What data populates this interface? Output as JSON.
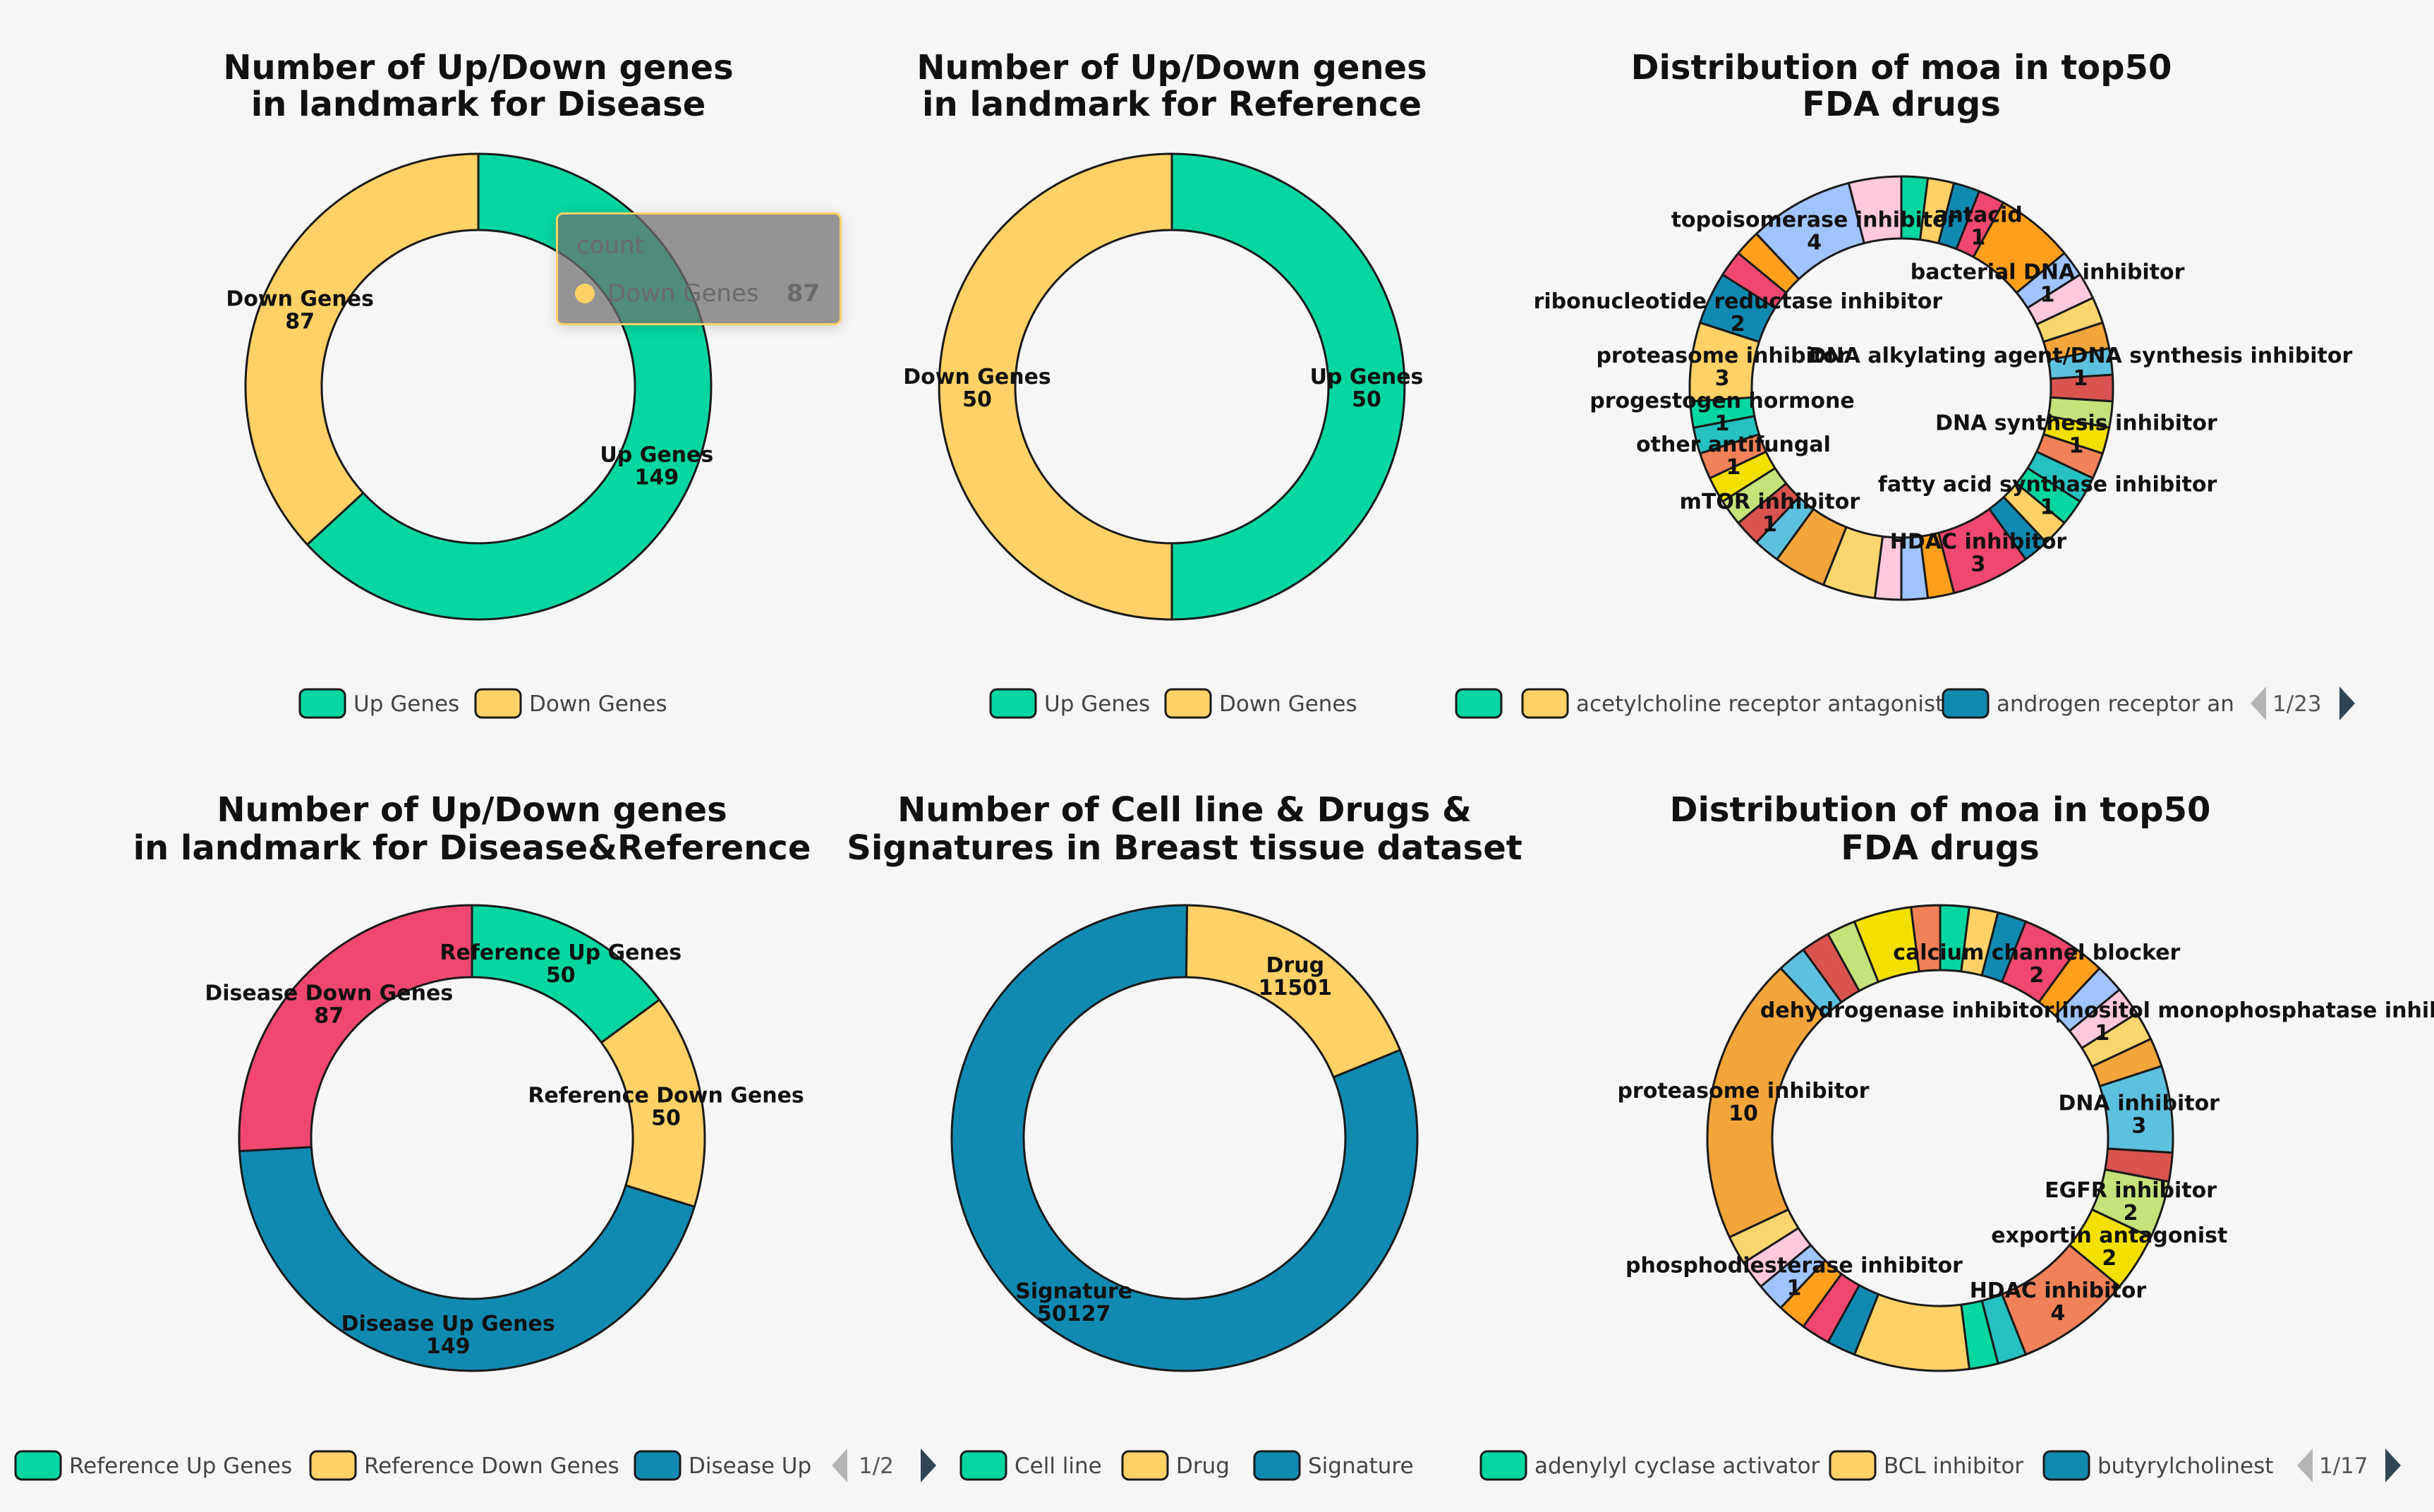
{
  "palette": [
    "#06d6a0",
    "#ffd166",
    "#118ab2",
    "#ef476f",
    "#ff9f1c",
    "#a0c4ff",
    "#ffc8dd",
    "#f9d66e",
    "#f2a53b",
    "#5ec0df",
    "#d9534f",
    "#c6e27a",
    "#f3e000",
    "#f08159",
    "#26c1c1"
  ],
  "chart_data": [
    {
      "type": "pie",
      "id": "disease",
      "title": [
        "Number of Up/Down genes",
        "in landmark for Disease"
      ],
      "slices": [
        {
          "name": "Up Genes",
          "value": 149,
          "label": true
        },
        {
          "name": "Down Genes",
          "value": 87,
          "label": true
        }
      ],
      "legend": {
        "items": [
          "Up Genes",
          "Down Genes"
        ]
      },
      "tooltip": {
        "title": "count",
        "name": "Down Genes",
        "value": "87"
      }
    },
    {
      "type": "pie",
      "id": "reference",
      "title": [
        "Number of Up/Down genes",
        "in landmark for Reference"
      ],
      "slices": [
        {
          "name": "Up Genes",
          "value": 50,
          "label": true
        },
        {
          "name": "Down Genes",
          "value": 50,
          "label": true
        }
      ],
      "legend": {
        "items": [
          "Up Genes",
          "Down Genes"
        ]
      }
    },
    {
      "type": "pie",
      "id": "moa1",
      "title": [
        "Distribution of moa in top50",
        "FDA drugs"
      ],
      "slices": [
        {
          "name": "",
          "value": 1
        },
        {
          "name": "acetylcholine receptor antagonist",
          "value": 1
        },
        {
          "name": "",
          "value": 1
        },
        {
          "name": "antacid",
          "value": 1,
          "label": true
        },
        {
          "name": "",
          "value": 3
        },
        {
          "name": "bacterial DNA inhibitor",
          "value": 1,
          "label": true
        },
        {
          "name": "",
          "value": 1
        },
        {
          "name": "",
          "value": 1
        },
        {
          "name": "",
          "value": 1
        },
        {
          "name": "DNA alkylating agent/DNA synthesis inhibitor",
          "value": 1,
          "label": true
        },
        {
          "name": "",
          "value": 1
        },
        {
          "name": "",
          "value": 1
        },
        {
          "name": "DNA synthesis inhibitor",
          "value": 1,
          "label": true
        },
        {
          "name": "",
          "value": 1
        },
        {
          "name": "",
          "value": 1
        },
        {
          "name": "fatty acid synthase inhibitor",
          "value": 1,
          "label": true
        },
        {
          "name": "",
          "value": 1
        },
        {
          "name": "",
          "value": 1
        },
        {
          "name": "HDAC inhibitor",
          "value": 3,
          "label": true
        },
        {
          "name": "",
          "value": 1
        },
        {
          "name": "",
          "value": 1
        },
        {
          "name": "",
          "value": 1
        },
        {
          "name": "",
          "value": 2
        },
        {
          "name": "",
          "value": 2
        },
        {
          "name": "",
          "value": 1
        },
        {
          "name": "mTOR inhibitor",
          "value": 1,
          "label": true
        },
        {
          "name": "",
          "value": 1
        },
        {
          "name": "",
          "value": 1
        },
        {
          "name": "other antifungal",
          "value": 1,
          "label": true
        },
        {
          "name": "",
          "value": 1
        },
        {
          "name": "progestogen hormone",
          "value": 1,
          "label": true
        },
        {
          "name": "proteasome inhibitor",
          "value": 3,
          "label": true
        },
        {
          "name": "ribonucleotide reductase inhibitor",
          "value": 2,
          "label": true
        },
        {
          "name": "",
          "value": 1
        },
        {
          "name": "",
          "value": 1
        },
        {
          "name": "topoisomerase inhibitor",
          "value": 4,
          "label": true
        },
        {
          "name": "",
          "value": 2
        }
      ],
      "legend": {
        "items": [
          "",
          "acetylcholine receptor antagonist",
          "androgen receptor an"
        ],
        "page": "1/23"
      }
    },
    {
      "type": "pie",
      "id": "disease-reference",
      "title": [
        "Number of Up/Down genes",
        "in landmark for Disease&Reference"
      ],
      "slices": [
        {
          "name": "Reference Up Genes",
          "value": 50,
          "label": true
        },
        {
          "name": "Reference Down Genes",
          "value": 50,
          "label": true
        },
        {
          "name": "Disease Up Genes",
          "value": 149,
          "label": true
        },
        {
          "name": "Disease Down Genes",
          "value": 87,
          "label": true
        }
      ],
      "legend": {
        "items": [
          "Reference Up Genes",
          "Reference Down Genes",
          "Disease Up"
        ],
        "page": "1/2"
      }
    },
    {
      "type": "pie",
      "id": "breast-dataset",
      "title": [
        "Number of Cell line & Drugs &",
        "Signatures in Breast tissue dataset"
      ],
      "slices": [
        {
          "name": "Cell line",
          "value": null,
          "label": true
        },
        {
          "name": "Drug",
          "value": 11501,
          "label": true
        },
        {
          "name": "Signature",
          "value": 50127,
          "label": true
        }
      ],
      "legend": {
        "items": [
          "Cell line",
          "Drug",
          "Signature"
        ]
      }
    },
    {
      "type": "pie",
      "id": "moa2",
      "title": [
        "Distribution of moa in top50",
        "FDA drugs"
      ],
      "slices": [
        {
          "name": "adenylyl cyclase activator",
          "value": 1
        },
        {
          "name": "BCL inhibitor",
          "value": 1
        },
        {
          "name": "butyrylcholinest",
          "value": 1
        },
        {
          "name": "calcium channel blocker",
          "value": 2,
          "label": true
        },
        {
          "name": "",
          "value": 1
        },
        {
          "name": "",
          "value": 1
        },
        {
          "name": "dehydrogenase inhibitor|inositol monophosphatase inhib",
          "value": 1,
          "label": true
        },
        {
          "name": "",
          "value": 1
        },
        {
          "name": "",
          "value": 1
        },
        {
          "name": "DNA inhibitor",
          "value": 3,
          "label": true
        },
        {
          "name": "",
          "value": 1
        },
        {
          "name": "EGFR inhibitor",
          "value": 2,
          "label": true
        },
        {
          "name": "exportin antagonist",
          "value": 2,
          "label": true
        },
        {
          "name": "HDAC inhibitor",
          "value": 4,
          "label": true
        },
        {
          "name": "",
          "value": 1
        },
        {
          "name": "",
          "value": 1
        },
        {
          "name": "",
          "value": 4
        },
        {
          "name": "",
          "value": 1
        },
        {
          "name": "",
          "value": 1
        },
        {
          "name": "",
          "value": 1
        },
        {
          "name": "phosphodiesterase inhibitor",
          "value": 1,
          "label": true
        },
        {
          "name": "",
          "value": 1
        },
        {
          "name": "",
          "value": 1
        },
        {
          "name": "proteasome inhibitor",
          "value": 10,
          "label": true
        },
        {
          "name": "",
          "value": 1
        },
        {
          "name": "",
          "value": 1
        },
        {
          "name": "",
          "value": 1
        },
        {
          "name": "",
          "value": 2
        },
        {
          "name": "",
          "value": 1
        }
      ],
      "legend": {
        "items": [
          "adenylyl cyclase activator",
          "BCL inhibitor",
          "butyrylcholinest"
        ],
        "page": "1/17"
      }
    }
  ]
}
